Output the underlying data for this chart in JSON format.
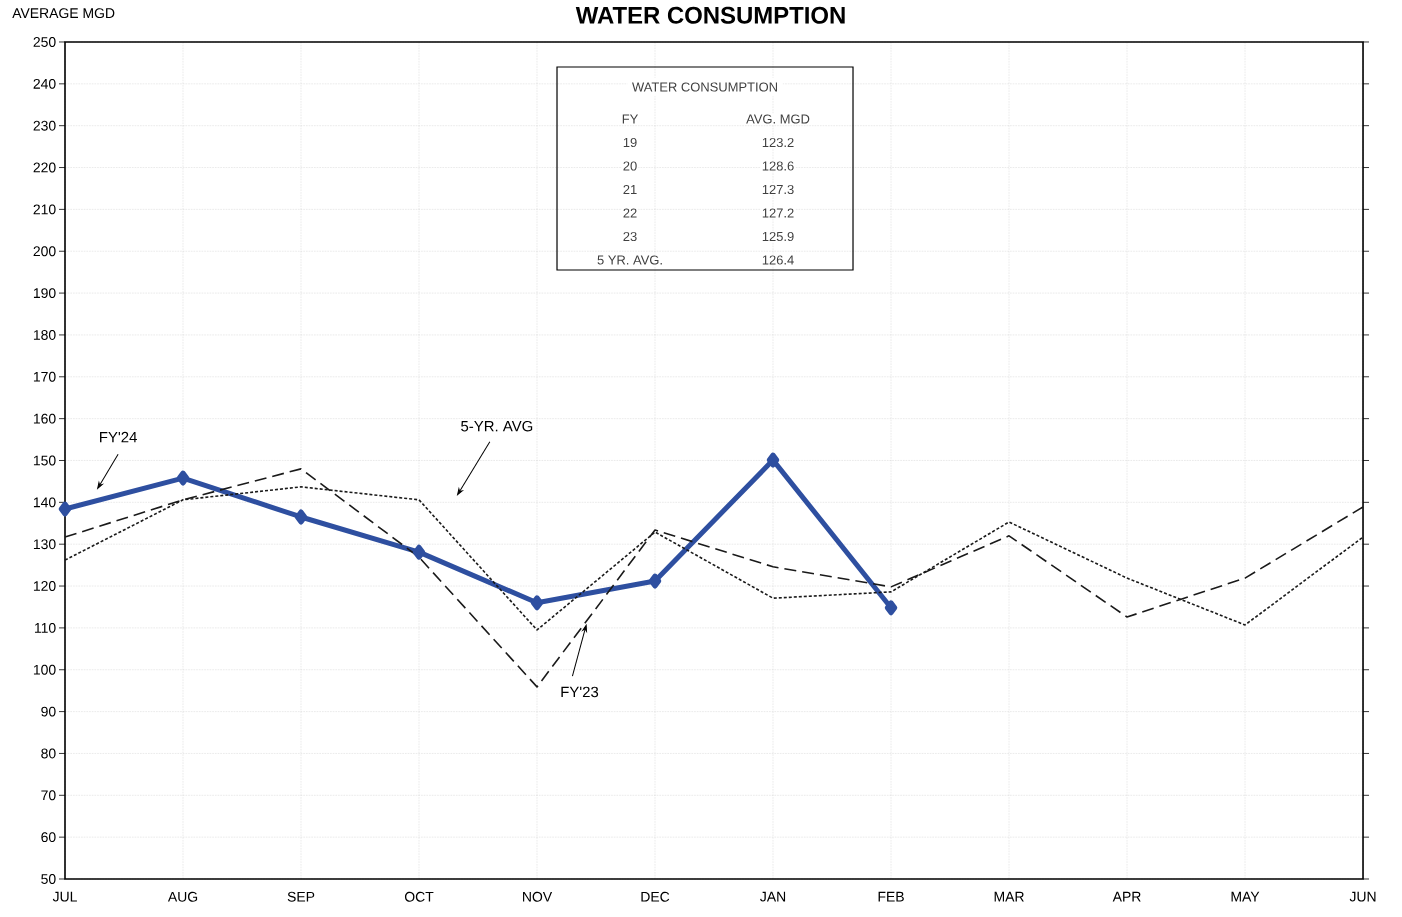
{
  "chart_data": {
    "type": "line",
    "title": "WATER CONSUMPTION",
    "ylabel": "AVERAGE  MGD",
    "categories": [
      "JUL",
      "AUG",
      "SEP",
      "OCT",
      "NOV",
      "DEC",
      "JAN",
      "FEB",
      "MAR",
      "APR",
      "MAY",
      "JUN"
    ],
    "series": [
      {
        "name": "FY'24",
        "color": "#2e4fa0",
        "marker": "diamond",
        "line_style": "solid",
        "values": [
          138.4,
          145.8,
          136.5,
          128.1,
          116.0,
          121.2,
          150.1,
          114.8,
          null,
          null,
          null,
          null
        ]
      },
      {
        "name": "FY'23",
        "color": "#1a1a1a",
        "line_style": "dashed",
        "values": [
          131.7,
          140.6,
          148.0,
          126.9,
          95.9,
          133.4,
          124.6,
          119.8,
          132.0,
          112.6,
          121.9,
          138.9
        ]
      },
      {
        "name": "5-YR. AVG",
        "color": "#1a1a1a",
        "line_style": "dotted",
        "values": [
          126.2,
          140.6,
          143.7,
          140.6,
          109.5,
          132.9,
          117.1,
          118.6,
          135.3,
          121.9,
          110.7,
          131.7
        ]
      }
    ],
    "ylim": [
      50,
      250
    ],
    "yticks": [
      50,
      60,
      70,
      80,
      90,
      100,
      110,
      120,
      130,
      140,
      150,
      160,
      170,
      180,
      190,
      200,
      210,
      220,
      230,
      240,
      250
    ],
    "grid": true,
    "legend": false,
    "annotations": [
      "WATER CONSUMPTION",
      "FY",
      "AVG. MGD",
      "19",
      "123.2",
      "20",
      "128.6",
      "21",
      "127.3",
      "22",
      "127.2",
      "23",
      "125.9",
      "5 YR. AVG.",
      "126.4"
    ]
  }
}
